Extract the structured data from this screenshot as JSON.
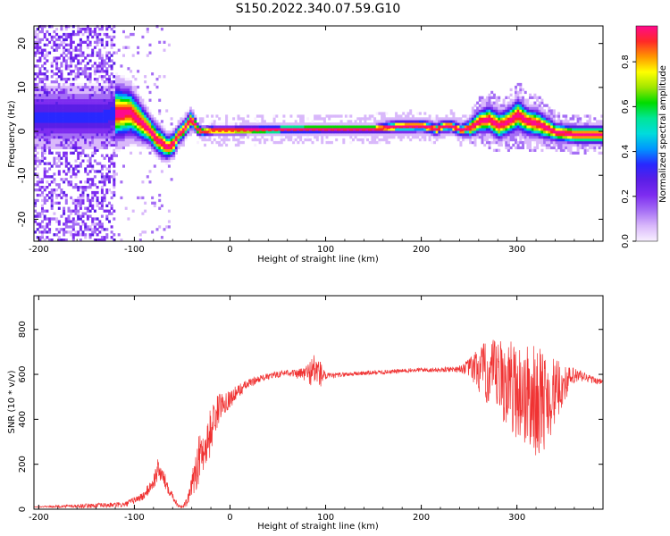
{
  "figure": {
    "title": "S150.2022.340.07.59.G10"
  },
  "colors": {
    "snr_line": "#f03232",
    "axis": "#000000",
    "background": "#ffffff"
  },
  "chart_data": [
    {
      "type": "heatmap",
      "title": "",
      "xlabel": "Height of straight line (km)",
      "ylabel": "Frequency (Hz)",
      "xlim": [
        -205,
        390
      ],
      "ylim": [
        -25,
        24
      ],
      "xticks": [
        -200,
        -100,
        0,
        100,
        200,
        300
      ],
      "yticks": [
        -20,
        -10,
        0,
        10,
        20
      ],
      "colorbar": {
        "label": "Normalized spectral amplitude",
        "range": [
          0,
          0.96
        ],
        "ticks": [
          "0.0",
          "0.2",
          "0.4",
          "0.6",
          "0.8"
        ],
        "colormap": [
          "#f8f0ff",
          "#d9b8fb",
          "#a56ef5",
          "#7d2cf0",
          "#5a1ee6",
          "#2828ff",
          "#0096ff",
          "#00dcdc",
          "#00e696",
          "#00dc00",
          "#a0e600",
          "#ffff00",
          "#ff9600",
          "#ff2828",
          "#ff0a8c"
        ]
      },
      "ridge": {
        "x": [
          -135,
          -120,
          -105,
          -95,
          -85,
          -78,
          -72,
          -66,
          -60,
          -55,
          -50,
          -45,
          -42,
          -38,
          -35,
          -30,
          -20,
          0,
          50,
          100,
          150,
          170,
          200,
          210,
          215,
          220,
          230,
          240,
          250,
          260,
          270,
          280,
          290,
          300,
          310,
          320,
          330,
          340,
          360,
          390
        ],
        "y": [
          3,
          4,
          4,
          2,
          0,
          -2,
          -3,
          -4,
          -3,
          -1,
          0,
          1.5,
          2.5,
          1.5,
          0.2,
          -0.3,
          0,
          0,
          0.2,
          0.3,
          0.3,
          0.8,
          1,
          0.5,
          0.2,
          0.8,
          1,
          0,
          0.5,
          2,
          2.5,
          1,
          2,
          3.5,
          2,
          1.5,
          0.5,
          -0.5,
          -1,
          -1
        ],
        "width": [
          6,
          6,
          5,
          4,
          3,
          3,
          3,
          2.5,
          2.5,
          2,
          2,
          2,
          2,
          1.5,
          1.2,
          1,
          1,
          1,
          1,
          1,
          1,
          1.5,
          1.5,
          1.5,
          1.5,
          1.5,
          1.5,
          1.5,
          2,
          2.5,
          3,
          3,
          3,
          3.5,
          3,
          3,
          2.5,
          2,
          2,
          2
        ]
      }
    },
    {
      "type": "line",
      "title": "",
      "xlabel": "Height of straight line (km)",
      "ylabel": "SNR (10 * v/v)",
      "xlim": [
        -205,
        390
      ],
      "ylim": [
        0,
        950
      ],
      "xticks": [
        -200,
        -100,
        0,
        100,
        200,
        300
      ],
      "yticks": [
        0,
        200,
        400,
        600,
        800
      ],
      "series": [
        {
          "color": "#f03232",
          "x": [
            -205,
            -150,
            -110,
            -90,
            -80,
            -75,
            -70,
            -65,
            -60,
            -55,
            -50,
            -45,
            -40,
            -35,
            -30,
            -25,
            -20,
            -15,
            -10,
            -5,
            0,
            10,
            20,
            30,
            40,
            50,
            60,
            70,
            80,
            90,
            95,
            100,
            110,
            120,
            140,
            160,
            180,
            200,
            220,
            240,
            250,
            260,
            270,
            280,
            290,
            300,
            310,
            320,
            330,
            340,
            350,
            360,
            370,
            380,
            390
          ],
          "y": [
            10,
            15,
            20,
            60,
            120,
            180,
            140,
            100,
            60,
            20,
            10,
            30,
            100,
            200,
            250,
            280,
            350,
            420,
            460,
            480,
            490,
            530,
            560,
            580,
            590,
            600,
            610,
            600,
            605,
            620,
            600,
            590,
            595,
            600,
            605,
            610,
            615,
            620,
            620,
            625,
            630,
            620,
            600,
            580,
            560,
            530,
            500,
            480,
            490,
            520,
            560,
            590,
            590,
            575,
            565
          ],
          "noise": [
            2,
            10,
            12,
            20,
            35,
            50,
            40,
            30,
            20,
            10,
            8,
            20,
            40,
            120,
            90,
            100,
            110,
            80,
            60,
            50,
            40,
            30,
            20,
            15,
            15,
            15,
            15,
            20,
            40,
            90,
            60,
            15,
            12,
            10,
            10,
            10,
            10,
            10,
            10,
            15,
            40,
            110,
            150,
            180,
            200,
            220,
            240,
            250,
            220,
            150,
            80,
            40,
            25,
            15,
            12
          ]
        }
      ]
    }
  ]
}
